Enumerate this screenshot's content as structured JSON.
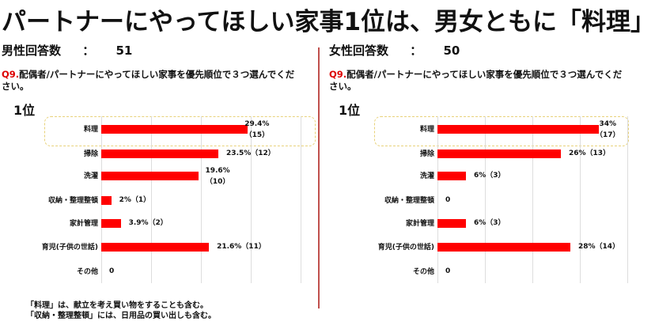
{
  "title": "パートナーにやってほしい家事1位は、男女ともに「料理」",
  "male": {
    "label": "男性回答数",
    "colon": "：",
    "count": "51"
  },
  "female": {
    "label": "女性回答数",
    "colon": "：",
    "count": "50"
  },
  "question": {
    "number": "Q9.",
    "text": "配偶者/パートナーにやってほしい家事を優先順位で３つ選んでください。"
  },
  "rank_label": "1位",
  "notes": [
    "「料理」は、献立を考え買い物をすることも含む。",
    "「収納・整理整頓」には、日用品の買い出しも含む。"
  ],
  "chart_data": [
    {
      "type": "bar",
      "orientation": "horizontal",
      "title": "男性 1位",
      "categories": [
        "料理",
        "掃除",
        "洗濯",
        "収納・整理整頓",
        "家計管理",
        "育児(子供の世話)",
        "その他"
      ],
      "values": [
        29.4,
        23.5,
        19.6,
        2,
        3.9,
        21.6,
        0
      ],
      "counts": [
        15,
        12,
        10,
        1,
        2,
        11,
        0
      ],
      "data_labels": [
        "29.4%",
        "23.5%（12）",
        "19.6%",
        "2%（1）",
        "3.9%（2）",
        "21.6%（11）",
        "0"
      ],
      "data_labels2": [
        "（15）",
        "",
        "（10）",
        "",
        "",
        "",
        ""
      ],
      "xlim": [
        0,
        40
      ],
      "grid": true,
      "highlight": "料理",
      "color": "#ff0000"
    },
    {
      "type": "bar",
      "orientation": "horizontal",
      "title": "女性 1位",
      "categories": [
        "料理",
        "掃除",
        "洗濯",
        "収納・整理整頓",
        "家計管理",
        "育児(子供の世話)",
        "その他"
      ],
      "values": [
        34,
        26,
        6,
        0,
        6,
        28,
        0
      ],
      "counts": [
        17,
        13,
        3,
        0,
        3,
        14,
        0
      ],
      "data_labels": [
        "34%",
        "26%（13）",
        "6%（3）",
        "0",
        "6%（3）",
        "28%（14）",
        "0"
      ],
      "data_labels2": [
        "（17）",
        "",
        "",
        "",
        "",
        "",
        ""
      ],
      "xlim": [
        0,
        40
      ],
      "grid": true,
      "highlight": "料理",
      "color": "#ff0000"
    }
  ]
}
